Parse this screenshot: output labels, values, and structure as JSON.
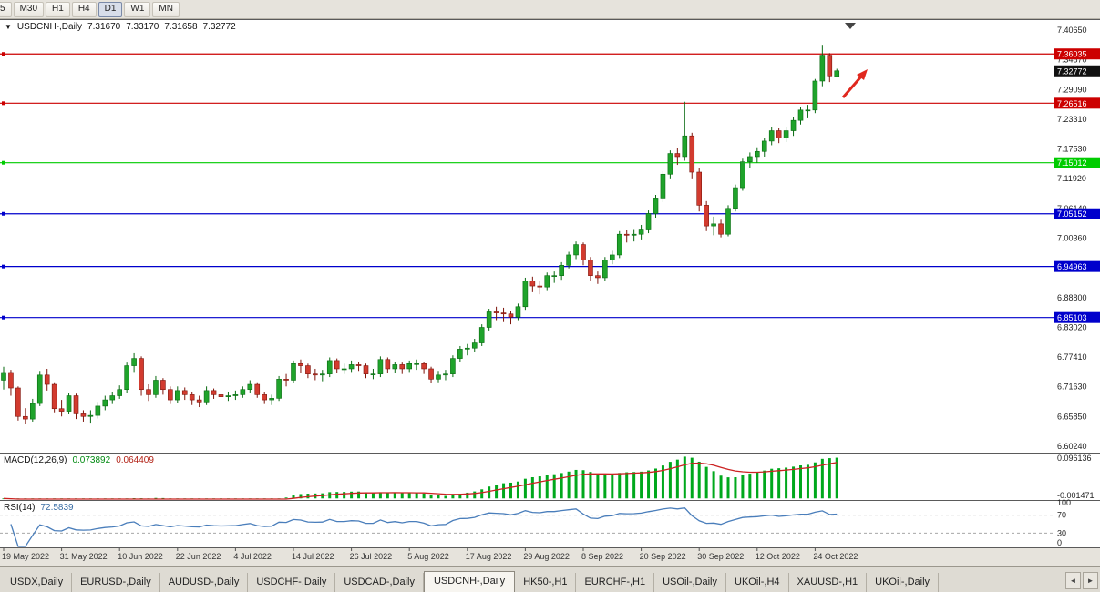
{
  "toolbar": {
    "timeframes": [
      "5",
      "M30",
      "H1",
      "H4",
      "D1",
      "W1",
      "MN"
    ],
    "active": "D1"
  },
  "title": {
    "marker": "▼",
    "symbol": "USDCNH-,Daily",
    "open": "7.31670",
    "high": "7.33170",
    "low": "7.31658",
    "close": "7.32772"
  },
  "chart_data": {
    "type": "candlestick",
    "symbol": "USDCNH",
    "timeframe": "Daily",
    "axis_top_value": 7.4065,
    "axis_bottom_value": 6.6024,
    "price_axis_labels": [
      "7.40650",
      "7.34870",
      "7.29090",
      "7.23310",
      "7.17530",
      "7.11920",
      "7.06140",
      "7.00360",
      "6.94580",
      "6.88800",
      "6.83020",
      "6.77410",
      "6.71630",
      "6.65850",
      "6.60240"
    ],
    "horizontal_lines": [
      {
        "price": 7.36035,
        "label": "7.36035",
        "color": "#CC0000"
      },
      {
        "price": 7.26516,
        "label": "7.26516",
        "color": "#CC0000"
      },
      {
        "price": 7.15012,
        "label": "7.15012",
        "color": "#00CC00"
      },
      {
        "price": 7.05152,
        "label": "7.05152",
        "color": "#0000CC"
      },
      {
        "price": 6.94963,
        "label": "6.94963",
        "color": "#0000CC"
      },
      {
        "price": 6.85103,
        "label": "6.85103",
        "color": "#0000CC"
      }
    ],
    "current_price": {
      "price": 7.32772,
      "label": "7.32772",
      "bg": "#111111"
    },
    "up_color": "#1FA32B",
    "up_border": "#0A6B12",
    "down_color": "#D23B2F",
    "down_border": "#7E150C",
    "trend_arrow_color": "#E0281E",
    "candles": [
      [
        6.73,
        6.756,
        6.712,
        6.745
      ],
      [
        6.745,
        6.75,
        6.7,
        6.715
      ],
      [
        6.715,
        6.718,
        6.652,
        6.66
      ],
      [
        6.66,
        6.676,
        6.645,
        6.655
      ],
      [
        6.655,
        6.694,
        6.65,
        6.685
      ],
      [
        6.685,
        6.748,
        6.68,
        6.74
      ],
      [
        6.74,
        6.752,
        6.71,
        6.722
      ],
      [
        6.722,
        6.726,
        6.668,
        6.675
      ],
      [
        6.675,
        6.692,
        6.66,
        6.67
      ],
      [
        6.67,
        6.706,
        6.664,
        6.7
      ],
      [
        6.7,
        6.704,
        6.655,
        6.665
      ],
      [
        6.665,
        6.672,
        6.65,
        6.66
      ],
      [
        6.66,
        6.672,
        6.648,
        6.662
      ],
      [
        6.662,
        6.688,
        6.656,
        6.68
      ],
      [
        6.68,
        6.7,
        6.672,
        6.692
      ],
      [
        6.692,
        6.708,
        6.684,
        6.7
      ],
      [
        6.7,
        6.72,
        6.694,
        6.712
      ],
      [
        6.712,
        6.764,
        6.706,
        6.758
      ],
      [
        6.758,
        6.782,
        6.746,
        6.772
      ],
      [
        6.772,
        6.776,
        6.7,
        6.712
      ],
      [
        6.712,
        6.722,
        6.69,
        6.702
      ],
      [
        6.702,
        6.738,
        6.696,
        6.73
      ],
      [
        6.73,
        6.734,
        6.702,
        6.712
      ],
      [
        6.712,
        6.718,
        6.684,
        6.692
      ],
      [
        6.692,
        6.718,
        6.686,
        6.71
      ],
      [
        6.71,
        6.716,
        6.692,
        6.702
      ],
      [
        6.702,
        6.708,
        6.682,
        6.692
      ],
      [
        6.692,
        6.7,
        6.678,
        6.688
      ],
      [
        6.688,
        6.718,
        6.682,
        6.71
      ],
      [
        6.71,
        6.714,
        6.694,
        6.702
      ],
      [
        6.702,
        6.71,
        6.688,
        6.698
      ],
      [
        6.698,
        6.708,
        6.69,
        6.7
      ],
      [
        6.7,
        6.71,
        6.692,
        6.702
      ],
      [
        6.702,
        6.718,
        6.696,
        6.712
      ],
      [
        6.712,
        6.73,
        6.706,
        6.722
      ],
      [
        6.722,
        6.726,
        6.696,
        6.702
      ],
      [
        6.702,
        6.708,
        6.684,
        6.692
      ],
      [
        6.692,
        6.702,
        6.682,
        6.695
      ],
      [
        6.695,
        6.738,
        6.69,
        6.732
      ],
      [
        6.732,
        6.742,
        6.718,
        6.73
      ],
      [
        6.73,
        6.768,
        6.724,
        6.762
      ],
      [
        6.762,
        6.77,
        6.744,
        6.758
      ],
      [
        6.758,
        6.762,
        6.734,
        6.742
      ],
      [
        6.742,
        6.752,
        6.73,
        6.74
      ],
      [
        6.74,
        6.75,
        6.728,
        6.742
      ],
      [
        6.742,
        6.774,
        6.736,
        6.768
      ],
      [
        6.768,
        6.772,
        6.744,
        6.752
      ],
      [
        6.752,
        6.762,
        6.742,
        6.752
      ],
      [
        6.752,
        6.768,
        6.746,
        6.76
      ],
      [
        6.76,
        6.766,
        6.748,
        6.758
      ],
      [
        6.758,
        6.762,
        6.734,
        6.742
      ],
      [
        6.742,
        6.752,
        6.732,
        6.742
      ],
      [
        6.742,
        6.776,
        6.736,
        6.77
      ],
      [
        6.77,
        6.774,
        6.744,
        6.752
      ],
      [
        6.752,
        6.766,
        6.744,
        6.76
      ],
      [
        6.76,
        6.764,
        6.742,
        6.752
      ],
      [
        6.752,
        6.768,
        6.746,
        6.762
      ],
      [
        6.762,
        6.77,
        6.75,
        6.762
      ],
      [
        6.762,
        6.766,
        6.742,
        6.752
      ],
      [
        6.752,
        6.756,
        6.724,
        6.732
      ],
      [
        6.732,
        6.748,
        6.726,
        6.74
      ],
      [
        6.74,
        6.75,
        6.73,
        6.742
      ],
      [
        6.742,
        6.778,
        6.736,
        6.772
      ],
      [
        6.772,
        6.796,
        6.766,
        6.79
      ],
      [
        6.79,
        6.8,
        6.778,
        6.792
      ],
      [
        6.792,
        6.81,
        6.784,
        6.802
      ],
      [
        6.802,
        6.838,
        6.796,
        6.832
      ],
      [
        6.832,
        6.868,
        6.826,
        6.862
      ],
      [
        6.862,
        6.872,
        6.846,
        6.86
      ],
      [
        6.86,
        6.87,
        6.844,
        6.858
      ],
      [
        6.858,
        6.864,
        6.838,
        6.852
      ],
      [
        6.852,
        6.878,
        6.846,
        6.872
      ],
      [
        6.872,
        6.928,
        6.866,
        6.922
      ],
      [
        6.922,
        6.93,
        6.9,
        6.912
      ],
      [
        6.912,
        6.922,
        6.896,
        6.91
      ],
      [
        6.91,
        6.938,
        6.904,
        6.932
      ],
      [
        6.932,
        6.94,
        6.918,
        6.932
      ],
      [
        6.932,
        6.958,
        6.924,
        6.952
      ],
      [
        6.952,
        6.978,
        6.946,
        6.972
      ],
      [
        6.972,
        6.998,
        6.964,
        6.992
      ],
      [
        6.992,
        6.996,
        6.952,
        6.962
      ],
      [
        6.962,
        6.968,
        6.922,
        6.932
      ],
      [
        6.932,
        6.94,
        6.916,
        6.928
      ],
      [
        6.928,
        6.968,
        6.922,
        6.962
      ],
      [
        6.962,
        6.98,
        6.954,
        6.972
      ],
      [
        6.972,
        7.018,
        6.966,
        7.012
      ],
      [
        7.012,
        7.02,
        6.996,
        7.01
      ],
      [
        7.01,
        7.022,
        6.998,
        7.012
      ],
      [
        7.012,
        7.03,
        7.002,
        7.022
      ],
      [
        7.022,
        7.058,
        7.014,
        7.052
      ],
      [
        7.052,
        7.088,
        7.044,
        7.082
      ],
      [
        7.082,
        7.134,
        7.074,
        7.128
      ],
      [
        7.128,
        7.174,
        7.12,
        7.168
      ],
      [
        7.168,
        7.178,
        7.146,
        7.162
      ],
      [
        7.162,
        7.268,
        7.154,
        7.202
      ],
      [
        7.202,
        7.208,
        7.12,
        7.132
      ],
      [
        7.132,
        7.14,
        7.056,
        7.068
      ],
      [
        7.068,
        7.076,
        7.018,
        7.028
      ],
      [
        7.028,
        7.046,
        7.01,
        7.032
      ],
      [
        7.032,
        7.04,
        7.006,
        7.012
      ],
      [
        7.012,
        7.068,
        7.008,
        7.062
      ],
      [
        7.062,
        7.108,
        7.056,
        7.102
      ],
      [
        7.102,
        7.158,
        7.096,
        7.152
      ],
      [
        7.152,
        7.17,
        7.14,
        7.162
      ],
      [
        7.162,
        7.18,
        7.15,
        7.172
      ],
      [
        7.172,
        7.198,
        7.162,
        7.192
      ],
      [
        7.192,
        7.22,
        7.184,
        7.212
      ],
      [
        7.212,
        7.218,
        7.188,
        7.198
      ],
      [
        7.198,
        7.22,
        7.19,
        7.212
      ],
      [
        7.212,
        7.238,
        7.202,
        7.232
      ],
      [
        7.232,
        7.258,
        7.224,
        7.252
      ],
      [
        7.252,
        7.262,
        7.236,
        7.252
      ],
      [
        7.252,
        7.312,
        7.246,
        7.308
      ],
      [
        7.308,
        7.378,
        7.298,
        7.358
      ],
      [
        7.358,
        7.362,
        7.306,
        7.318
      ],
      [
        7.3167,
        7.3317,
        7.31658,
        7.32772
      ]
    ],
    "date_labels": [
      "19 May 2022",
      "31 May 2022",
      "10 Jun 2022",
      "22 Jun 2022",
      "4 Jul 2022",
      "14 Jul 2022",
      "26 Jul 2022",
      "5 Aug 2022",
      "17 Aug 2022",
      "29 Aug 2022",
      "8 Sep 2022",
      "20 Sep 2022",
      "30 Sep 2022",
      "12 Oct 2022",
      "24 Oct 2022"
    ],
    "date_label_bar_indices": [
      0,
      8,
      16,
      24,
      32,
      40,
      48,
      56,
      64,
      72,
      80,
      88,
      96,
      104,
      112
    ],
    "macd": {
      "name": "MACD(12,26,9)",
      "main_value": "0.073892",
      "signal_value": "0.064409",
      "axis_max_label": "0.096136",
      "axis_min_label": "-0.001471",
      "axis_max": 0.096136,
      "axis_min": -0.001471,
      "histogram_color": "#00A81C",
      "signal_color": "#CC2222"
    },
    "rsi": {
      "name": "RSI(14)",
      "value": "72.5839",
      "axis_labels": [
        "100",
        "70",
        "30",
        "0"
      ],
      "levels": [
        70,
        30
      ],
      "line_color": "#4A7EBB",
      "level_color": "#9A9A9A"
    }
  },
  "tabs": {
    "items": [
      "USDX,Daily",
      "EURUSD-,Daily",
      "AUDUSD-,Daily",
      "USDCHF-,Daily",
      "USDCAD-,Daily",
      "USDCNH-,Daily",
      "HK50-,H1",
      "EURCHF-,H1",
      "USOil-,Daily",
      "UKOil-,H4",
      "XAUUSD-,H1",
      "UKOil-,Daily"
    ],
    "active_index": 5,
    "nav_left": "◄",
    "nav_right": "►"
  }
}
